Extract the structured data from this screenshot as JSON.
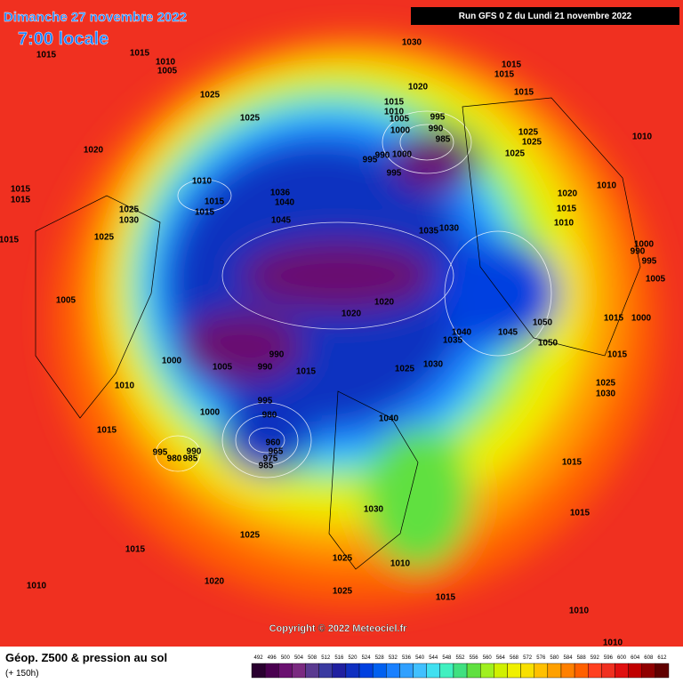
{
  "header": {
    "date": "Dimanche 27 novembre 2022",
    "time": "7:00 locale",
    "run": "Run GFS 0 Z du Lundi 21 novembre 2022"
  },
  "copyright": "Copyright © 2022 Meteociel.fr",
  "footer": {
    "title": "Géop. Z500 & pression au sol",
    "lead": "(+ 150h)"
  },
  "legend": {
    "values": [
      492,
      496,
      500,
      504,
      508,
      512,
      516,
      520,
      524,
      528,
      532,
      536,
      540,
      544,
      548,
      552,
      556,
      560,
      564,
      568,
      572,
      576,
      580,
      584,
      588,
      592,
      596,
      600,
      604,
      608,
      612
    ],
    "colors": [
      "#2a0030",
      "#4a0050",
      "#6a1070",
      "#7a2a80",
      "#5a3a90",
      "#3a3aa0",
      "#2020a0",
      "#1030c0",
      "#0040e0",
      "#0060f0",
      "#1a80ff",
      "#30a0ff",
      "#40c0ff",
      "#40e0f0",
      "#40f0c0",
      "#40e080",
      "#60e040",
      "#a0f020",
      "#d0f000",
      "#f0f000",
      "#f8e000",
      "#ffc000",
      "#ffa000",
      "#ff8000",
      "#ff6000",
      "#ff4020",
      "#f03020",
      "#e01010",
      "#c00000",
      "#900000",
      "#600000"
    ]
  },
  "pressure_labels": [
    "1015",
    "1015",
    "1010",
    "1005",
    "1030",
    "1025",
    "1025",
    "1020",
    "1015",
    "1015",
    "1015",
    "1015",
    "1010",
    "1005",
    "995",
    "990",
    "985",
    "1000",
    "1025",
    "1025",
    "1025",
    "1010",
    "1020",
    "1000",
    "995",
    "990",
    "995",
    "1010",
    "1015",
    "1015",
    "1036",
    "1040",
    "1015",
    "1025",
    "1030",
    "1015",
    "1045",
    "1020",
    "1015",
    "1010",
    "1010",
    "1035",
    "1030",
    "1025",
    "1015",
    "1000",
    "990",
    "995",
    "1005",
    "1005",
    "1020",
    "1020",
    "1050",
    "1040",
    "1045",
    "1035",
    "1050",
    "1015",
    "1000",
    "990",
    "1000",
    "1005",
    "990",
    "1015",
    "1025",
    "1030",
    "1015",
    "1025",
    "1030",
    "1010",
    "995",
    "980",
    "1000",
    "1040",
    "1015",
    "960",
    "965",
    "975",
    "985",
    "995",
    "980",
    "990",
    "985",
    "1015",
    "1030",
    "1015",
    "1025",
    "1015",
    "1025",
    "1010",
    "1020",
    "1010",
    "1025",
    "1015",
    "1010",
    "1010"
  ]
}
